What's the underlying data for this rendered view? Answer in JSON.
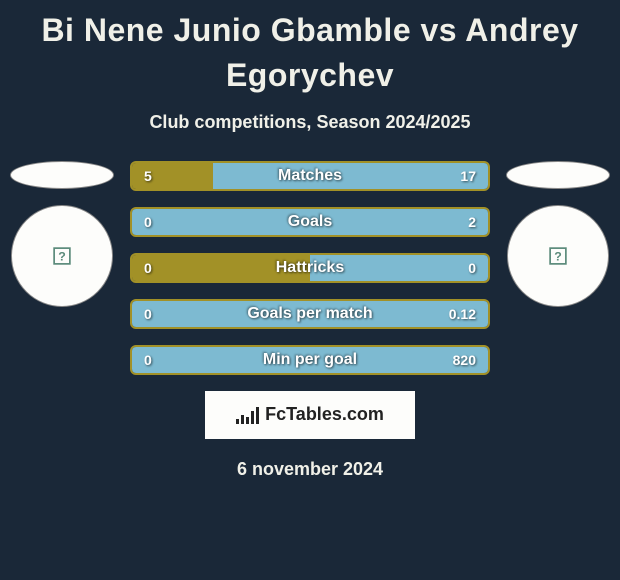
{
  "title": "Bi Nene Junio Gbamble vs Andrey Egorychev",
  "subtitle": "Club competitions, Season 2024/2025",
  "date": "6 november 2024",
  "branding": "FcTables.com",
  "colors": {
    "background": "#1a2838",
    "left_player": "#a29127",
    "right_player": "#7dbad1",
    "text": "#f0f0e8"
  },
  "stats": [
    {
      "label": "Matches",
      "left_val": "5",
      "right_val": "17",
      "left_pct": 22.7,
      "right_pct": 77.3
    },
    {
      "label": "Goals",
      "left_val": "0",
      "right_val": "2",
      "left_pct": 0,
      "right_pct": 100
    },
    {
      "label": "Hattricks",
      "left_val": "0",
      "right_val": "0",
      "left_pct": 50,
      "right_pct": 50
    },
    {
      "label": "Goals per match",
      "left_val": "0",
      "right_val": "0.12",
      "left_pct": 0,
      "right_pct": 100
    },
    {
      "label": "Min per goal",
      "left_val": "0",
      "right_val": "820",
      "left_pct": 0,
      "right_pct": 100
    }
  ]
}
